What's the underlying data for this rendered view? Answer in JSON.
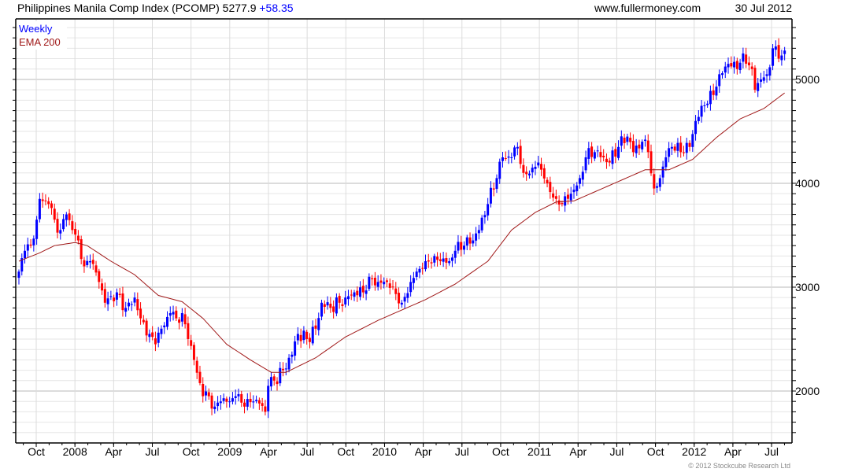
{
  "header": {
    "title": "Philippines Manila Comp Index (PCOMP) 5277.9",
    "change": "+58.35",
    "website": "www.fullermoney.com",
    "date": "30 Jul 2012"
  },
  "legend": {
    "weekly": "Weekly",
    "ema": "EMA 200"
  },
  "copyright": "© 2012 Stockcube Research Ltd",
  "colors": {
    "up": "#0000ff",
    "down": "#ff0000",
    "ema": "#a01818",
    "change": "#0000ff"
  },
  "chart_data": {
    "type": "candlestick",
    "title": "Philippines Manila Comp Index (PCOMP)",
    "period": "Weekly",
    "last": 5277.9,
    "change": 58.35,
    "ylim": [
      1500,
      5583
    ],
    "y_ticks": [
      "2000",
      "3000",
      "4000",
      "5000"
    ],
    "y_tick_values": [
      2000,
      3000,
      4000,
      5000
    ],
    "x_tick_labels": [
      "Oct",
      "2008",
      "Apr",
      "Jul",
      "Oct",
      "2009",
      "Apr",
      "Jul",
      "Oct",
      "2010",
      "Apr",
      "Jul",
      "Oct",
      "2011",
      "Apr",
      "Jul",
      "Oct",
      "2012",
      "Apr",
      "Jul"
    ],
    "weeks": 259,
    "close_anchors": [
      [
        0,
        3150
      ],
      [
        2,
        3350
      ],
      [
        4,
        3400
      ],
      [
        6,
        3650
      ],
      [
        7,
        3850
      ],
      [
        10,
        3800
      ],
      [
        12,
        3650
      ],
      [
        14,
        3550
      ],
      [
        16,
        3700
      ],
      [
        18,
        3550
      ],
      [
        20,
        3450
      ],
      [
        22,
        3200
      ],
      [
        24,
        3250
      ],
      [
        27,
        3050
      ],
      [
        29,
        2850
      ],
      [
        33,
        2950
      ],
      [
        36,
        2800
      ],
      [
        39,
        2900
      ],
      [
        41,
        2700
      ],
      [
        44,
        2550
      ],
      [
        46,
        2450
      ],
      [
        48,
        2600
      ],
      [
        51,
        2750
      ],
      [
        53,
        2700
      ],
      [
        55,
        2750
      ],
      [
        57,
        2500
      ],
      [
        59,
        2300
      ],
      [
        62,
        1950
      ],
      [
        64,
        1950
      ],
      [
        66,
        1850
      ],
      [
        68,
        1900
      ],
      [
        71,
        1900
      ],
      [
        73,
        1950
      ],
      [
        76,
        1850
      ],
      [
        79,
        1900
      ],
      [
        81,
        1880
      ],
      [
        83,
        1800
      ],
      [
        84,
        2050
      ],
      [
        86,
        2100
      ],
      [
        89,
        2200
      ],
      [
        92,
        2350
      ],
      [
        94,
        2550
      ],
      [
        97,
        2500
      ],
      [
        100,
        2600
      ],
      [
        102,
        2850
      ],
      [
        105,
        2800
      ],
      [
        108,
        2850
      ],
      [
        110,
        2900
      ],
      [
        113,
        2950
      ],
      [
        116,
        2950
      ],
      [
        118,
        3100
      ],
      [
        121,
        3050
      ],
      [
        124,
        3050
      ],
      [
        126,
        3000
      ],
      [
        129,
        2850
      ],
      [
        132,
        3050
      ],
      [
        134,
        3150
      ],
      [
        137,
        3250
      ],
      [
        140,
        3300
      ],
      [
        142,
        3250
      ],
      [
        145,
        3250
      ],
      [
        147,
        3350
      ],
      [
        150,
        3400
      ],
      [
        153,
        3450
      ],
      [
        155,
        3550
      ],
      [
        158,
        3800
      ],
      [
        161,
        4050
      ],
      [
        163,
        4250
      ],
      [
        166,
        4250
      ],
      [
        168,
        4350
      ],
      [
        170,
        4100
      ],
      [
        173,
        4150
      ],
      [
        175,
        4200
      ],
      [
        178,
        4000
      ],
      [
        181,
        3850
      ],
      [
        183,
        3800
      ],
      [
        186,
        3900
      ],
      [
        189,
        4050
      ],
      [
        191,
        4250
      ],
      [
        194,
        4300
      ],
      [
        197,
        4250
      ],
      [
        199,
        4200
      ],
      [
        202,
        4350
      ],
      [
        205,
        4450
      ],
      [
        207,
        4300
      ],
      [
        210,
        4400
      ],
      [
        212,
        4300
      ],
      [
        214,
        3950
      ],
      [
        216,
        4050
      ],
      [
        218,
        4250
      ],
      [
        220,
        4350
      ],
      [
        223,
        4300
      ],
      [
        226,
        4350
      ],
      [
        228,
        4600
      ],
      [
        231,
        4750
      ],
      [
        234,
        4850
      ],
      [
        236,
        5050
      ],
      [
        239,
        5150
      ],
      [
        242,
        5100
      ],
      [
        244,
        5250
      ],
      [
        247,
        5100
      ],
      [
        248,
        4900
      ],
      [
        250,
        5000
      ],
      [
        252,
        5050
      ],
      [
        254,
        5300
      ],
      [
        256,
        5200
      ],
      [
        258,
        5277.9
      ]
    ],
    "ema_anchors": [
      [
        0,
        3250
      ],
      [
        7,
        3330
      ],
      [
        12,
        3400
      ],
      [
        19,
        3430
      ],
      [
        23,
        3400
      ],
      [
        31,
        3250
      ],
      [
        39,
        3120
      ],
      [
        47,
        2920
      ],
      [
        55,
        2860
      ],
      [
        62,
        2700
      ],
      [
        70,
        2450
      ],
      [
        78,
        2300
      ],
      [
        85,
        2180
      ],
      [
        90,
        2180
      ],
      [
        100,
        2320
      ],
      [
        110,
        2520
      ],
      [
        121,
        2680
      ],
      [
        129,
        2780
      ],
      [
        137,
        2880
      ],
      [
        147,
        3030
      ],
      [
        158,
        3250
      ],
      [
        166,
        3550
      ],
      [
        174,
        3720
      ],
      [
        181,
        3820
      ],
      [
        187,
        3830
      ],
      [
        195,
        3930
      ],
      [
        203,
        4030
      ],
      [
        211,
        4130
      ],
      [
        219,
        4130
      ],
      [
        227,
        4230
      ],
      [
        235,
        4440
      ],
      [
        243,
        4620
      ],
      [
        251,
        4720
      ],
      [
        258,
        4870
      ]
    ]
  }
}
